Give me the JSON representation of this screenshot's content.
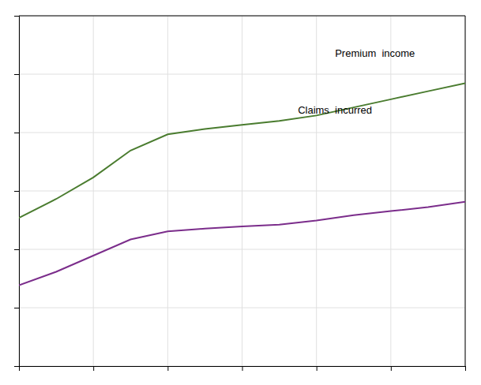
{
  "chart_data": {
    "type": "line",
    "x": [
      0,
      1,
      2,
      3,
      4,
      5,
      6,
      7,
      8,
      9,
      10,
      11,
      12
    ],
    "series": [
      {
        "color": "#4a7c2f",
        "values": [
          55,
          62,
          70,
          80,
          86,
          88,
          89.5,
          91,
          93,
          96,
          99,
          102,
          105
        ]
      },
      {
        "color": "#7b2d8b",
        "values": [
          30,
          35,
          41,
          47,
          50,
          51,
          51.8,
          52.5,
          54,
          56,
          57.5,
          59,
          61
        ]
      }
    ],
    "annotations": [
      {
        "text": "Premium  income",
        "x": 8.5,
        "y": 116
      },
      {
        "text": "Claims  incurred",
        "x": 7.5,
        "y": 95
      }
    ],
    "xlim": [
      0,
      12
    ],
    "ylim": [
      0,
      130
    ],
    "xticks": [
      0,
      2,
      4,
      6,
      8,
      10,
      12
    ],
    "yticks": [
      0,
      21.666666666666668,
      43.333333333333336,
      65,
      86.66666666666667,
      108.33333333333333,
      130
    ],
    "grid": true,
    "tick_labels": false
  }
}
